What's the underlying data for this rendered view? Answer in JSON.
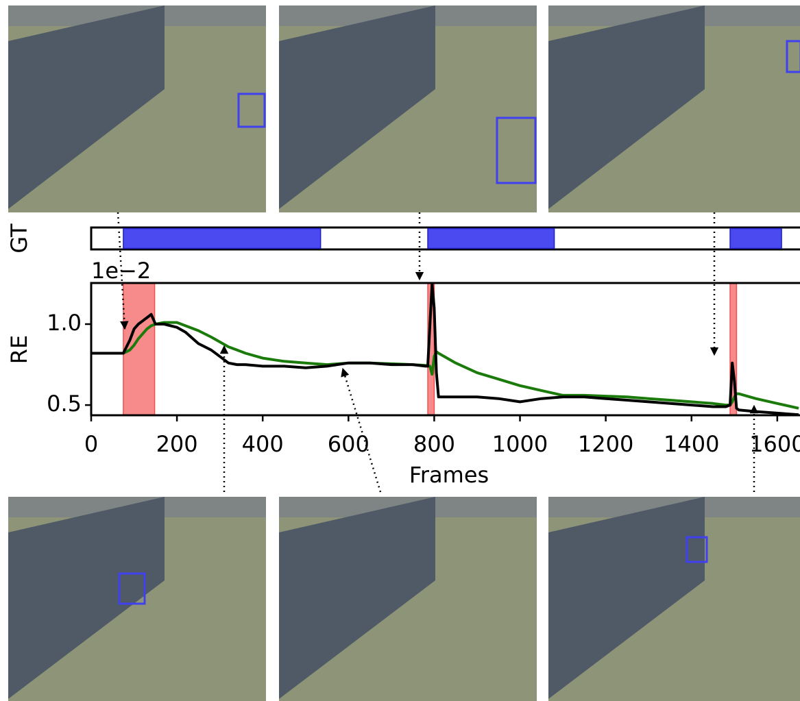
{
  "chart_data": {
    "type": "line",
    "gt_label": "GT",
    "ylabel": "RE",
    "xlabel": "Frames",
    "y_offset_label": "1e−2",
    "x": [
      0,
      50,
      75,
      90,
      100,
      110,
      120,
      130,
      140,
      150,
      170,
      200,
      220,
      250,
      280,
      300,
      320,
      340,
      360,
      400,
      450,
      500,
      550,
      600,
      650,
      700,
      750,
      780,
      785,
      790,
      795,
      800,
      805,
      810,
      850,
      900,
      950,
      1000,
      1050,
      1100,
      1150,
      1200,
      1250,
      1300,
      1350,
      1400,
      1450,
      1480,
      1490,
      1495,
      1500,
      1505,
      1510,
      1550,
      1600,
      1650
    ],
    "series": [
      {
        "color": "#000000",
        "values": [
          0.82,
          0.82,
          0.82,
          0.9,
          0.97,
          1.0,
          1.02,
          1.04,
          1.06,
          1.0,
          1.0,
          0.98,
          0.95,
          0.88,
          0.84,
          0.8,
          0.76,
          0.75,
          0.75,
          0.74,
          0.74,
          0.73,
          0.74,
          0.76,
          0.76,
          0.75,
          0.75,
          0.74,
          0.74,
          1.0,
          1.25,
          1.1,
          0.7,
          0.55,
          0.55,
          0.55,
          0.54,
          0.52,
          0.54,
          0.55,
          0.55,
          0.54,
          0.53,
          0.52,
          0.51,
          0.5,
          0.49,
          0.49,
          0.5,
          0.76,
          0.65,
          0.48,
          0.47,
          0.46,
          0.45,
          0.44
        ]
      },
      {
        "color": "#1a7a0a",
        "values": [
          0.82,
          0.82,
          0.82,
          0.84,
          0.87,
          0.91,
          0.94,
          0.97,
          0.99,
          1.0,
          1.01,
          1.01,
          0.99,
          0.96,
          0.92,
          0.89,
          0.86,
          0.84,
          0.82,
          0.79,
          0.77,
          0.76,
          0.75,
          0.76,
          0.76,
          0.755,
          0.75,
          0.745,
          0.74,
          0.74,
          0.69,
          0.8,
          0.83,
          0.82,
          0.76,
          0.7,
          0.66,
          0.62,
          0.59,
          0.56,
          0.56,
          0.555,
          0.55,
          0.54,
          0.53,
          0.52,
          0.51,
          0.5,
          0.5,
          0.52,
          0.55,
          0.57,
          0.57,
          0.54,
          0.51,
          0.48
        ]
      }
    ],
    "gt_intervals": [
      [
        75,
        535
      ],
      [
        785,
        1080
      ],
      [
        1490,
        1610
      ]
    ],
    "gt_color": "#4a4af0",
    "highlights": [
      [
        75,
        148
      ],
      [
        785,
        800
      ],
      [
        1490,
        1505
      ]
    ],
    "highlight_color": "#f78a8a",
    "xlim": [
      0,
      1653
    ],
    "xticks": [
      0,
      200,
      400,
      600,
      800,
      1000,
      1200,
      1400,
      1600
    ],
    "ylim": [
      0.437,
      1.254
    ],
    "yticks": [
      0.5,
      {
        "value": 1.0,
        "label": "1.0"
      }
    ]
  }
}
